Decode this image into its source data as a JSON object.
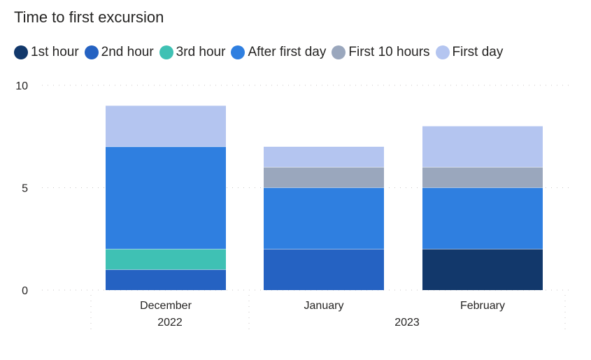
{
  "chart_data": {
    "type": "bar",
    "stacked": true,
    "title": "Time to first excursion",
    "xlabel": "",
    "ylabel": "",
    "ylim": [
      0,
      10
    ],
    "yticks": [
      0,
      5,
      10
    ],
    "grid": true,
    "legend_position": "top-left",
    "categories": [
      "December",
      "January",
      "February"
    ],
    "category_groups": [
      {
        "label": "2022",
        "categories": [
          "December"
        ]
      },
      {
        "label": "2023",
        "categories": [
          "January",
          "February"
        ]
      }
    ],
    "series": [
      {
        "name": "1st hour",
        "color": "#12386b",
        "values": [
          0,
          0,
          2
        ]
      },
      {
        "name": "2nd hour",
        "color": "#2562c2",
        "values": [
          1,
          2,
          0
        ]
      },
      {
        "name": "3rd hour",
        "color": "#3fc1b4",
        "values": [
          1,
          0,
          0
        ]
      },
      {
        "name": "After first day",
        "color": "#2f7fe0",
        "values": [
          5,
          3,
          3
        ]
      },
      {
        "name": "First 10 hours",
        "color": "#9aa7bd",
        "values": [
          0,
          1,
          1
        ]
      },
      {
        "name": "First day",
        "color": "#b4c5f0",
        "values": [
          2,
          1,
          2
        ]
      }
    ]
  }
}
